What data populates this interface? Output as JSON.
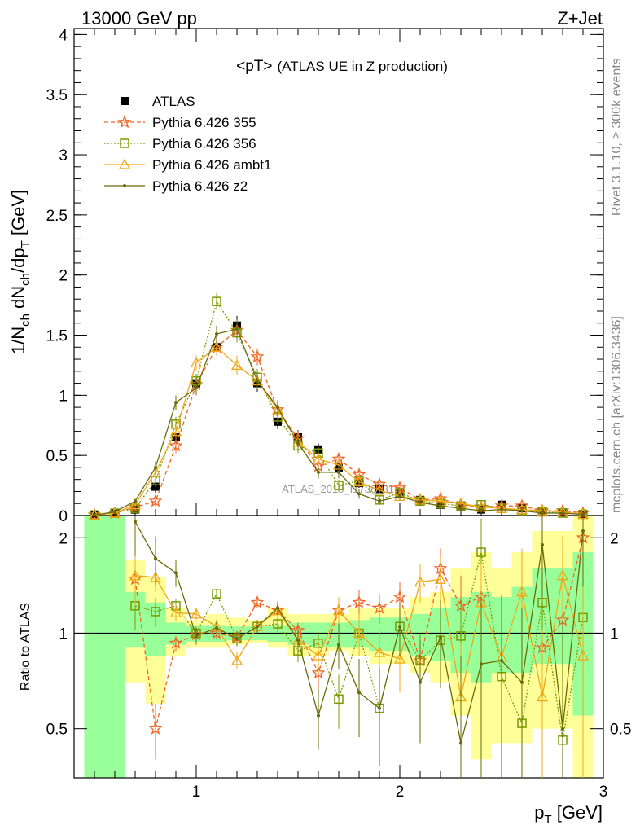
{
  "chart_data": {
    "type": "line",
    "energy_label": "13000 GeV pp",
    "process_label": "Z+Jet",
    "title": "<pT>",
    "title_suffix": "(ATLAS UE in Z production)",
    "ylabel_main": "1/N",
    "ylabel_sub1": "ch",
    "ylabel_mid": " dN",
    "ylabel_sub2": "ch",
    "ylabel_mid2": "/dp",
    "ylabel_sub3": "T",
    "ylabel_unit": " [GeV]",
    "ratio_ylabel": "Ratio to ATLAS",
    "xlabel_main": "p",
    "xlabel_sub": "T",
    "xlabel_unit": " [GeV]",
    "side_label_1": "Rivet 3.1.10, ≥ 300k events",
    "side_label_2": "mcplots.cern.ch [arXiv:1306.3436]",
    "watermark": "ATLAS_2019_I1736531",
    "xlim": [
      0.4,
      3.0
    ],
    "ylim_main": [
      0,
      4.05
    ],
    "ylim_ratio": [
      0.35,
      2.35
    ],
    "x_ticks": [
      "1",
      "2",
      "3"
    ],
    "x_tick_values": [
      1,
      2,
      3
    ],
    "y_ticks_main": [
      "0",
      "0.5",
      "1",
      "1.5",
      "2",
      "2.5",
      "3",
      "3.5",
      "4"
    ],
    "y_tick_values_main": [
      0,
      0.5,
      1,
      1.5,
      2,
      2.5,
      3,
      3.5,
      4
    ],
    "y_ticks_ratio": [
      "0.5",
      "1",
      "2"
    ],
    "y_tick_values_ratio": [
      0.5,
      1,
      2
    ],
    "x": [
      0.5,
      0.6,
      0.7,
      0.8,
      0.9,
      1.0,
      1.1,
      1.2,
      1.3,
      1.4,
      1.5,
      1.6,
      1.7,
      1.8,
      1.9,
      2.0,
      2.1,
      2.2,
      2.3,
      2.4,
      2.5,
      2.6,
      2.7,
      2.8,
      2.9
    ],
    "atlas": [
      0.005,
      0.02,
      0.05,
      0.24,
      0.65,
      1.1,
      1.4,
      1.58,
      1.1,
      0.78,
      0.65,
      0.55,
      0.4,
      0.27,
      0.22,
      0.18,
      0.13,
      0.09,
      0.07,
      0.05,
      0.09,
      0.06,
      0.03,
      0.025,
      0.01
    ],
    "atlas_err": [
      0.003,
      0.01,
      0.02,
      0.05,
      0.06,
      0.06,
      0.07,
      0.08,
      0.07,
      0.06,
      0.06,
      0.05,
      0.05,
      0.04,
      0.03,
      0.03,
      0.03,
      0.03,
      0.02,
      0.02,
      0.03,
      0.02,
      0.02,
      0.02,
      0.01
    ],
    "band_yellow_lo": [
      0.35,
      0.35,
      0.7,
      0.6,
      0.85,
      0.9,
      0.9,
      0.92,
      0.93,
      0.9,
      0.85,
      0.85,
      0.88,
      0.85,
      0.8,
      0.8,
      0.75,
      0.7,
      0.55,
      0.4,
      0.45,
      0.45,
      0.5,
      0.5,
      0.35
    ],
    "band_yellow_hi": [
      2.35,
      2.35,
      1.7,
      1.5,
      1.2,
      1.1,
      1.15,
      1.12,
      1.1,
      1.2,
      1.15,
      1.15,
      1.15,
      1.2,
      1.2,
      1.2,
      1.3,
      1.35,
      1.6,
      1.8,
      1.6,
      1.8,
      2.1,
      2.1,
      2.35
    ],
    "band_green_lo": [
      0.35,
      0.35,
      0.9,
      0.85,
      0.92,
      0.94,
      0.94,
      0.95,
      0.95,
      0.94,
      0.92,
      0.9,
      0.9,
      0.9,
      0.88,
      0.88,
      0.85,
      0.82,
      0.75,
      0.7,
      0.75,
      0.75,
      0.8,
      0.8,
      0.55
    ],
    "band_green_hi": [
      2.35,
      2.35,
      1.35,
      1.25,
      1.08,
      1.06,
      1.06,
      1.05,
      1.05,
      1.06,
      1.08,
      1.08,
      1.08,
      1.1,
      1.12,
      1.12,
      1.15,
      1.2,
      1.3,
      1.35,
      1.3,
      1.4,
      1.6,
      1.6,
      1.8
    ],
    "series": [
      {
        "name": "Pythia 6.426 355",
        "color": "#f26522",
        "style": "dashed",
        "marker": "star",
        "values": [
          0.005,
          0.02,
          0.07,
          0.12,
          0.58,
          1.09,
          1.4,
          1.54,
          1.32,
          0.88,
          0.64,
          0.41,
          0.47,
          0.34,
          0.26,
          0.23,
          0.13,
          0.14,
          0.09,
          0.07,
          0.08,
          0.08,
          0.04,
          0.04,
          0.02
        ],
        "ratio": [
          null,
          null,
          1.48,
          0.5,
          0.93,
          0.99,
          1.0,
          0.97,
          1.25,
          1.18,
          1.02,
          0.75,
          1.18,
          1.25,
          1.2,
          1.3,
          0.82,
          1.6,
          1.22,
          1.3,
          null,
          null,
          0.9,
          1.1,
          2.0
        ],
        "ratio_err": [
          0,
          0,
          0.15,
          0.1,
          0.05,
          0.04,
          0.04,
          0.04,
          0.05,
          0.05,
          0.06,
          0.08,
          0.1,
          0.12,
          0.13,
          0.15,
          0.15,
          0.25,
          0.3,
          0.4,
          0,
          0,
          0.5,
          0.6,
          0.8
        ]
      },
      {
        "name": "Pythia 6.426 356",
        "color": "#7a9a01",
        "style": "dotted",
        "marker": "square",
        "values": [
          0.005,
          0.02,
          0.06,
          0.29,
          0.76,
          1.12,
          1.78,
          1.52,
          1.15,
          0.82,
          0.58,
          0.52,
          0.25,
          0.29,
          0.13,
          0.19,
          0.12,
          0.1,
          0.08,
          0.09,
          0.06,
          0.04,
          0.03,
          0.02,
          0.01
        ],
        "ratio": [
          null,
          null,
          1.22,
          1.17,
          1.22,
          1.0,
          1.33,
          0.96,
          1.05,
          1.07,
          0.88,
          0.93,
          0.62,
          1.0,
          0.58,
          1.05,
          0.82,
          0.95,
          0.98,
          1.8,
          0.73,
          0.52,
          1.25,
          0.46,
          1.12
        ],
        "ratio_err": [
          0,
          0,
          0.2,
          0.12,
          0.06,
          0.05,
          0.05,
          0.04,
          0.05,
          0.06,
          0.07,
          0.08,
          0.12,
          0.12,
          0.15,
          0.15,
          0.18,
          0.2,
          0.3,
          0.5,
          0.4,
          0.3,
          0.5,
          0.4,
          0.6
        ]
      },
      {
        "name": "Pythia 6.426 ambt1",
        "color": "#f0a818",
        "style": "solid",
        "marker": "triangle",
        "values": [
          0.005,
          0.02,
          0.09,
          0.36,
          0.7,
          1.27,
          1.4,
          1.25,
          1.12,
          0.88,
          0.61,
          0.47,
          0.42,
          0.28,
          0.21,
          0.16,
          0.13,
          0.12,
          0.1,
          0.07,
          0.06,
          0.05,
          0.04,
          0.03,
          0.01
        ],
        "ratio": [
          null,
          null,
          1.52,
          1.5,
          1.16,
          1.15,
          1.05,
          0.82,
          1.05,
          1.18,
          0.95,
          0.85,
          1.18,
          1.0,
          0.87,
          0.83,
          1.45,
          1.48,
          0.63,
          1.25,
          0.84,
          1.35,
          0.63,
          1.52,
          0.85
        ],
        "ratio_err": [
          0,
          0,
          0.3,
          0.15,
          0.07,
          0.05,
          0.05,
          0.05,
          0.05,
          0.06,
          0.08,
          0.1,
          0.12,
          0.15,
          0.15,
          0.18,
          0.2,
          0.25,
          0.3,
          0.4,
          0.4,
          0.5,
          0.4,
          0.5,
          0.6
        ]
      },
      {
        "name": "Pythia 6.426 z2",
        "color": "#6b6b0a",
        "style": "solid",
        "marker": "dot",
        "values": [
          0.005,
          0.03,
          0.12,
          0.4,
          0.94,
          1.06,
          1.51,
          1.55,
          1.12,
          0.9,
          0.6,
          0.36,
          0.36,
          0.18,
          0.12,
          0.16,
          0.11,
          0.08,
          0.06,
          0.04,
          0.05,
          0.04,
          0.02,
          0.02,
          0.01
        ],
        "ratio": [
          null,
          null,
          2.25,
          1.72,
          1.55,
          0.98,
          1.04,
          0.96,
          1.05,
          1.2,
          0.95,
          0.55,
          0.92,
          0.65,
          0.58,
          1.05,
          0.7,
          0.97,
          0.45,
          0.8,
          0.82,
          0.7,
          1.9,
          0.5,
          2.1
        ],
        "ratio_err": [
          0,
          0,
          0.5,
          0.3,
          0.15,
          0.06,
          0.06,
          0.05,
          0.05,
          0.06,
          0.08,
          0.12,
          0.15,
          0.18,
          0.2,
          0.2,
          0.25,
          0.3,
          0.4,
          0.5,
          0.5,
          0.5,
          0.6,
          0.6,
          0.7
        ]
      }
    ],
    "legend_data_label": "ATLAS",
    "legend_position": "top-left"
  }
}
